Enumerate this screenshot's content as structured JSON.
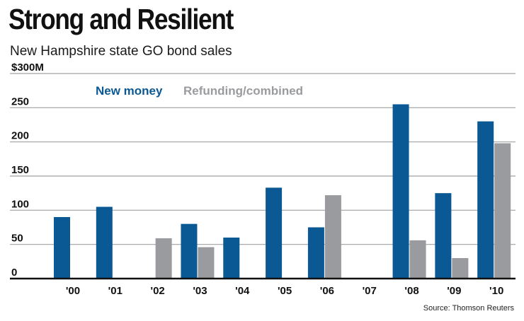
{
  "header": {
    "title": "Strong and Resilient",
    "subtitle": "New Hampshire state GO bond sales"
  },
  "footer": {
    "source": "Source: Thomson Reuters"
  },
  "colors": {
    "new_money": "#0b5994",
    "refunding": "#999b9e",
    "gridline": "#a0a0a0",
    "axis": "#111111"
  },
  "chart_data": {
    "type": "bar",
    "title": "Strong and Resilient",
    "subtitle": "New Hampshire state GO bond sales",
    "xlabel": "",
    "ylabel": "",
    "ylim": [
      0,
      300
    ],
    "y_ticks": [
      0,
      50,
      100,
      150,
      200,
      250,
      300
    ],
    "y_tick_labels": [
      "0",
      "50",
      "100",
      "150",
      "200",
      "250",
      "$300M"
    ],
    "categories": [
      "'00",
      "'01",
      "'02",
      "'03",
      "'04",
      "'05",
      "'06",
      "'07",
      "'08",
      "'09",
      "'10"
    ],
    "series": [
      {
        "name": "New money",
        "color": "#0b5994",
        "values": [
          90,
          105,
          0,
          80,
          60,
          133,
          75,
          0,
          255,
          125,
          230
        ]
      },
      {
        "name": "Refunding/combined",
        "color": "#999b9e",
        "values": [
          0,
          0,
          59,
          46,
          0,
          0,
          122,
          0,
          56,
          30,
          198
        ]
      }
    ],
    "legend_position": "top-left",
    "grid": true
  }
}
